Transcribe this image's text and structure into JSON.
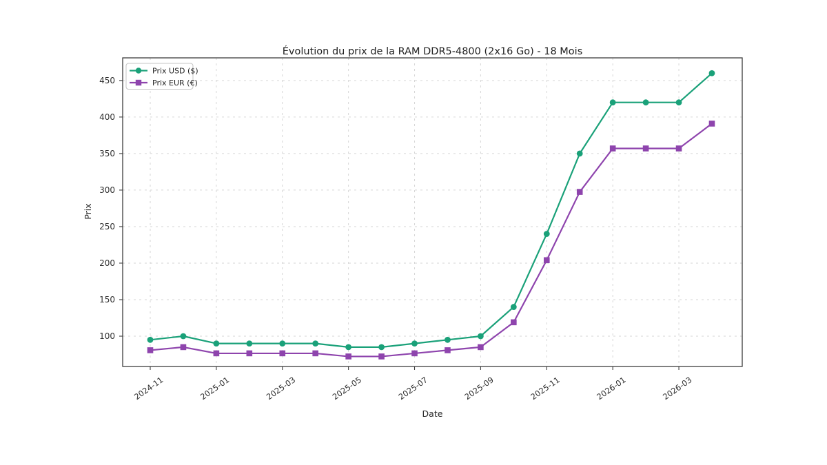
{
  "chart_data": {
    "type": "line",
    "title": "Évolution du prix de la RAM DDR5-4800 (2x16 Go) - 18 Mois",
    "xlabel": "Date",
    "ylabel": "Prix",
    "x": [
      "2024-11",
      "2024-12",
      "2025-01",
      "2025-02",
      "2025-03",
      "2025-04",
      "2025-05",
      "2025-06",
      "2025-07",
      "2025-08",
      "2025-09",
      "2025-10",
      "2025-11",
      "2025-12",
      "2026-01",
      "2026-02",
      "2026-03",
      "2026-04"
    ],
    "series": [
      {
        "name": "Prix USD ($)",
        "color": "#1aa179",
        "marker": "circle",
        "values": [
          95,
          100,
          90,
          90,
          90,
          90,
          85,
          85,
          90,
          95,
          100,
          140,
          240,
          350,
          420,
          420,
          420,
          460
        ]
      },
      {
        "name": "Prix EUR (€)",
        "color": "#8e44ad",
        "marker": "square",
        "values": [
          80.75,
          85,
          76.5,
          76.5,
          76.5,
          76.5,
          72.25,
          72.25,
          76.5,
          80.75,
          85,
          119,
          204,
          297.5,
          357,
          357,
          357,
          391
        ]
      }
    ],
    "yticks": [
      100,
      150,
      200,
      250,
      300,
      350,
      400,
      450
    ],
    "xtick_every": 2,
    "xticklabels_shown": [
      "2024-11",
      "2025-01",
      "2025-03",
      "2025-05",
      "2025-07",
      "2025-09",
      "2025-11",
      "2026-01",
      "2026-03"
    ],
    "ylim": [
      58.5,
      481
    ],
    "grid": true,
    "grid_style": "dashed",
    "legend_position": "upper left",
    "colors": {
      "grid": "#d6d6d6",
      "spine": "#3c3c3c",
      "tick": "#3c3c3c",
      "legend_border": "#c4c4c4",
      "legend_bg": "#ffffff",
      "background": "#ffffff"
    }
  }
}
